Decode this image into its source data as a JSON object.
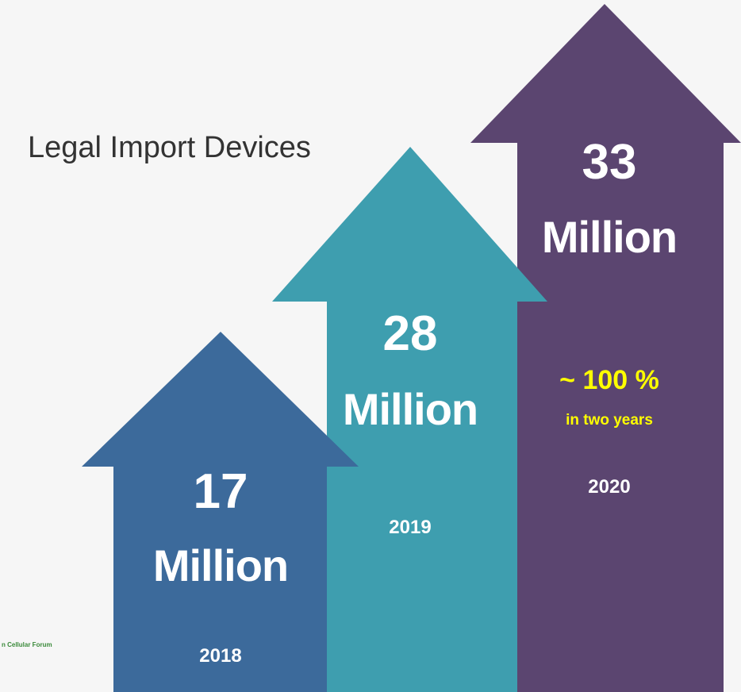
{
  "title": "Legal Import Devices",
  "footer": "n Cellular Forum",
  "arrows": [
    {
      "value": 17,
      "unit": "Million",
      "year": "2018"
    },
    {
      "value": 28,
      "unit": "Million",
      "year": "2019"
    },
    {
      "value": 33,
      "unit": "Million",
      "note": "~ 100 %",
      "subnote": "in two years",
      "year": "2020"
    }
  ]
}
